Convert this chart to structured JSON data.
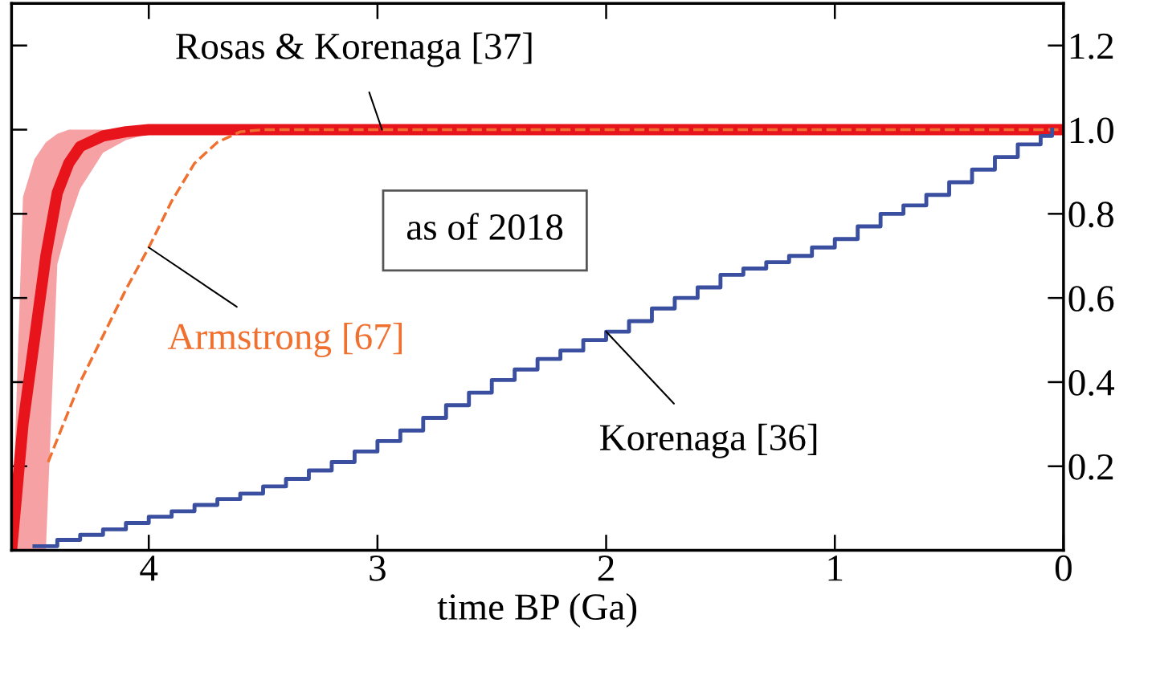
{
  "chart_data": {
    "type": "line",
    "xlabel": "time BP (Ga)",
    "xlim": [
      4.6,
      0
    ],
    "ylim": [
      0,
      1.3
    ],
    "xticks": [
      4,
      3,
      2,
      1,
      0
    ],
    "yticks": [
      0.2,
      0.4,
      0.6,
      0.8,
      {
        "value": 1.0,
        "label": "1.0"
      },
      1.2
    ],
    "grid": false,
    "series": [
      {
        "name": "Rosas & Korenaga [37]",
        "color": "#e8141c",
        "x": [
          4.6,
          4.55,
          4.5,
          4.45,
          4.4,
          4.35,
          4.3,
          4.2,
          4.1,
          4.0,
          3.9,
          3.8,
          0
        ],
        "values": [
          0.0,
          0.3,
          0.5,
          0.7,
          0.85,
          0.92,
          0.96,
          0.985,
          0.995,
          1.0,
          1.0,
          1.0,
          1.0
        ],
        "lower": [
          0.0,
          0.0,
          0.0,
          0.0,
          0.68,
          0.78,
          0.86,
          0.945,
          0.975,
          0.99,
          0.998,
          1.0,
          1.0
        ],
        "upper": [
          0.0,
          0.84,
          0.93,
          0.97,
          0.99,
          1.0,
          1.0,
          1.0,
          1.0,
          1.0,
          1.0,
          1.0,
          1.0
        ]
      },
      {
        "name": "Armstrong [67]",
        "color": "#f07030",
        "line_style": "dashed",
        "x": [
          4.44,
          4.3,
          4.1,
          4.0,
          3.9,
          3.8,
          3.7,
          3.6,
          3.5,
          0
        ],
        "values": [
          0.21,
          0.4,
          0.62,
          0.72,
          0.83,
          0.92,
          0.97,
          0.995,
          1.0,
          1.0
        ]
      },
      {
        "name": "Korenaga [36]",
        "type": "step",
        "color": "#3a4fa0",
        "x": [
          4.5,
          4.4,
          4.3,
          4.2,
          4.1,
          4.0,
          3.9,
          3.8,
          3.7,
          3.6,
          3.5,
          3.4,
          3.3,
          3.2,
          3.1,
          3.0,
          2.9,
          2.8,
          2.7,
          2.6,
          2.5,
          2.4,
          2.3,
          2.2,
          2.1,
          2.0,
          1.9,
          1.8,
          1.7,
          1.6,
          1.5,
          1.4,
          1.3,
          1.2,
          1.1,
          1.0,
          0.9,
          0.8,
          0.7,
          0.6,
          0.5,
          0.4,
          0.3,
          0.2,
          0.1,
          0.05
        ],
        "values": [
          0.01,
          0.025,
          0.037,
          0.05,
          0.065,
          0.08,
          0.093,
          0.108,
          0.122,
          0.135,
          0.152,
          0.17,
          0.19,
          0.21,
          0.235,
          0.26,
          0.285,
          0.315,
          0.345,
          0.375,
          0.405,
          0.43,
          0.455,
          0.475,
          0.5,
          0.52,
          0.545,
          0.575,
          0.6,
          0.625,
          0.655,
          0.67,
          0.685,
          0.7,
          0.72,
          0.74,
          0.77,
          0.8,
          0.82,
          0.845,
          0.875,
          0.905,
          0.935,
          0.965,
          0.985,
          1.0
        ]
      }
    ],
    "annotations": [
      "as of 2018"
    ]
  }
}
